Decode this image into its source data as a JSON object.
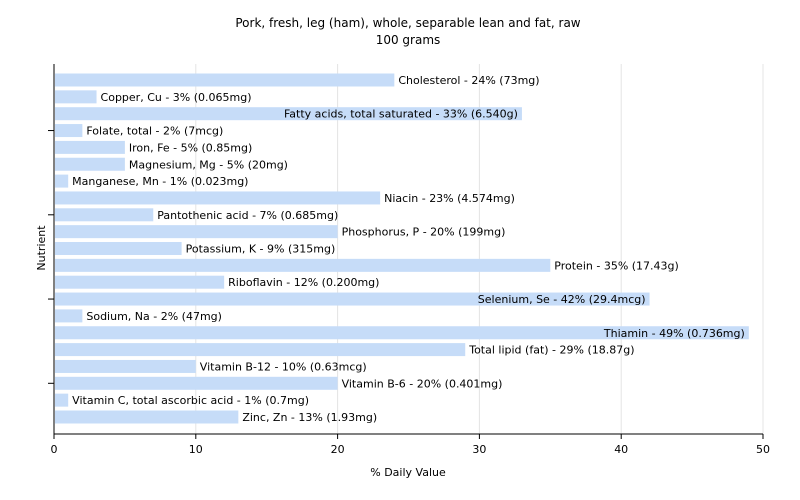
{
  "chart_data": {
    "type": "bar",
    "orientation": "horizontal",
    "title": "Pork, fresh, leg (ham), whole, separable lean and fat, raw",
    "subtitle": "100 grams",
    "xlabel": "% Daily Value",
    "ylabel": "Nutrient",
    "xlim": [
      0,
      50
    ],
    "xticks": [
      "0",
      "10",
      "20",
      "30",
      "40",
      "50"
    ],
    "grid": true,
    "colors": {
      "bar": "#c6dcf8",
      "grid": "#e4e4e4",
      "axis": "#000000"
    },
    "categories": [
      "Cholesterol",
      "Copper, Cu",
      "Fatty acids, total saturated",
      "Folate, total",
      "Iron, Fe",
      "Magnesium, Mg",
      "Manganese, Mn",
      "Niacin",
      "Pantothenic acid",
      "Phosphorus, P",
      "Potassium, K",
      "Protein",
      "Riboflavin",
      "Selenium, Se",
      "Sodium, Na",
      "Thiamin",
      "Total lipid (fat)",
      "Vitamin B-12",
      "Vitamin B-6",
      "Vitamin C, total ascorbic acid",
      "Zinc, Zn"
    ],
    "values": [
      24,
      3,
      33,
      2,
      5,
      5,
      1,
      23,
      7,
      20,
      9,
      35,
      12,
      42,
      2,
      49,
      29,
      10,
      20,
      1,
      13
    ],
    "labels": [
      "Cholesterol - 24% (73mg)",
      "Copper, Cu - 3% (0.065mg)",
      "Fatty acids, total saturated - 33% (6.540g)",
      "Folate, total - 2% (7mcg)",
      "Iron, Fe - 5% (0.85mg)",
      "Magnesium, Mg - 5% (20mg)",
      "Manganese, Mn - 1% (0.023mg)",
      "Niacin - 23% (4.574mg)",
      "Pantothenic acid - 7% (0.685mg)",
      "Phosphorus, P - 20% (199mg)",
      "Potassium, K - 9% (315mg)",
      "Protein - 35% (17.43g)",
      "Riboflavin - 12% (0.200mg)",
      "Selenium, Se - 42% (29.4mcg)",
      "Sodium, Na - 2% (47mg)",
      "Thiamin - 49% (0.736mg)",
      "Total lipid (fat) - 29% (18.87g)",
      "Vitamin B-12 - 10% (0.63mcg)",
      "Vitamin B-6 - 20% (0.401mg)",
      "Vitamin C, total ascorbic acid - 1% (0.7mg)",
      "Zinc, Zn - 13% (1.93mg)"
    ]
  }
}
